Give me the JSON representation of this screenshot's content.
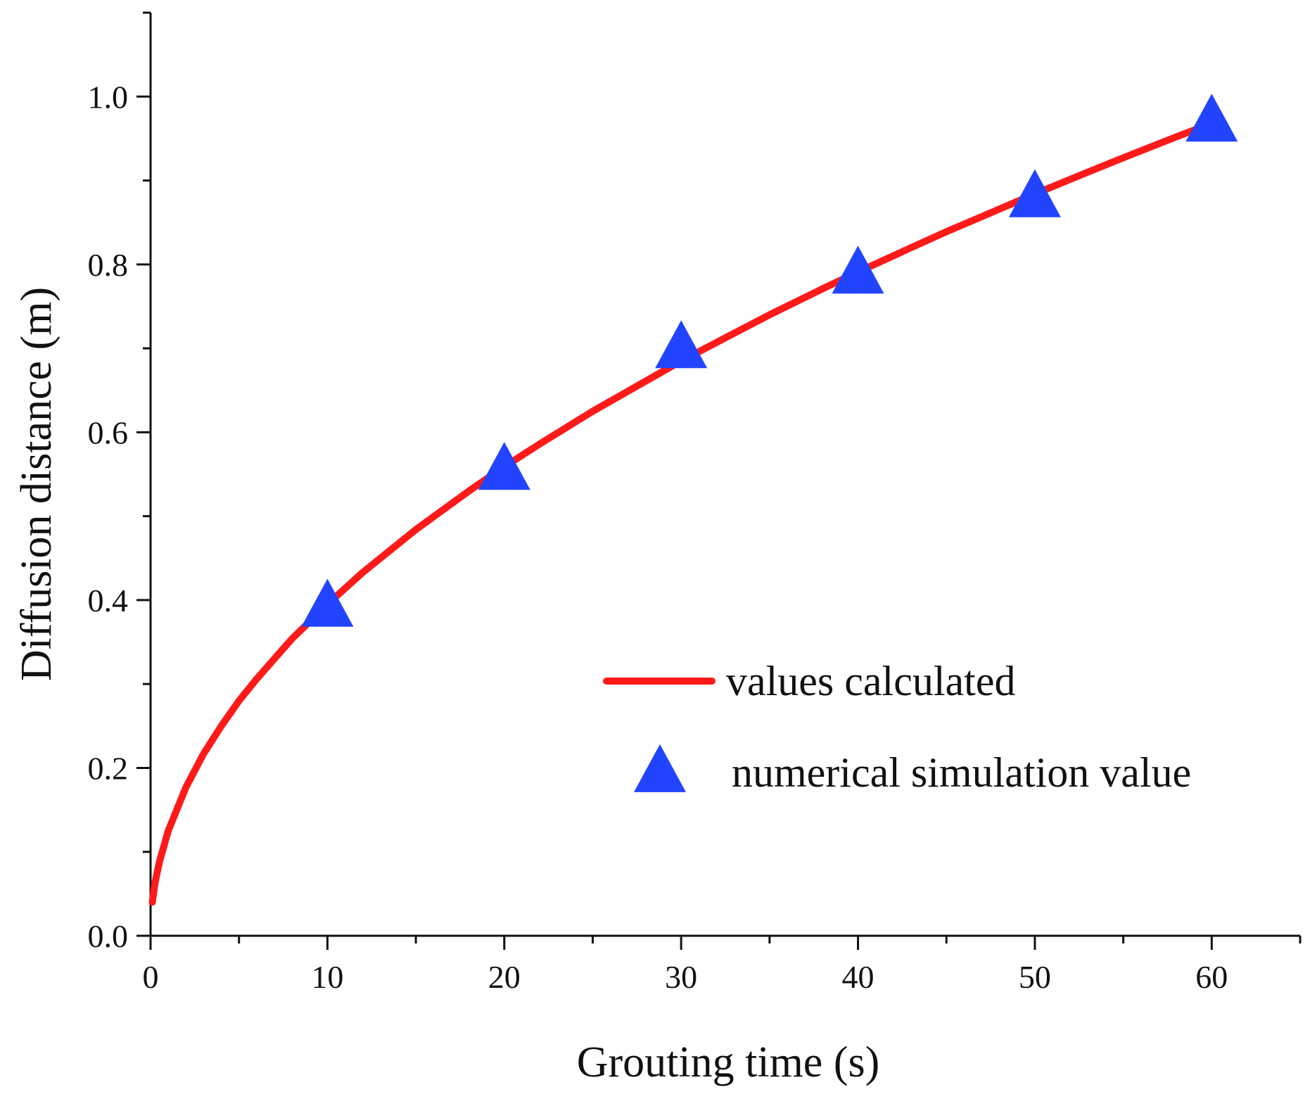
{
  "chart_data": {
    "type": "line",
    "title": "",
    "xlabel": "Grouting time (s)",
    "ylabel": "Diffusion distance (m)",
    "xlim": [
      0,
      65
    ],
    "ylim": [
      0,
      1.1
    ],
    "x_ticks": [
      0,
      10,
      20,
      30,
      40,
      50,
      60
    ],
    "x_tick_labels": [
      "0",
      "10",
      "20",
      "30",
      "40",
      "50",
      "60"
    ],
    "x_minor_ticks": [
      5,
      15,
      25,
      35,
      45,
      55,
      65
    ],
    "y_ticks": [
      0,
      0.2,
      0.4,
      0.6,
      0.8,
      1.0
    ],
    "y_tick_labels": [
      "0.0",
      "0.2",
      "0.4",
      "0.6",
      "0.8",
      "1.0"
    ],
    "y_minor_ticks": [
      0.1,
      0.3,
      0.5,
      0.7,
      0.9,
      1.1
    ],
    "grid": false,
    "legend_position": "center-right",
    "series": [
      {
        "name": "values calculated",
        "kind": "line",
        "color": "#ff1a1a",
        "formula": "y = 0.125 * x^0.5",
        "x": [
          0.1,
          0.25,
          0.5,
          1,
          2,
          3,
          4,
          5,
          6,
          8,
          10,
          12,
          15,
          18,
          20,
          22,
          25,
          28,
          30,
          33,
          35,
          38,
          40,
          43,
          45,
          48,
          50,
          53,
          55,
          58,
          60
        ],
        "y": [
          0.04,
          0.063,
          0.088,
          0.125,
          0.177,
          0.217,
          0.25,
          0.28,
          0.306,
          0.354,
          0.395,
          0.433,
          0.484,
          0.53,
          0.559,
          0.586,
          0.625,
          0.661,
          0.685,
          0.718,
          0.74,
          0.771,
          0.791,
          0.82,
          0.839,
          0.866,
          0.884,
          0.91,
          0.927,
          0.952,
          0.968
        ]
      },
      {
        "name": "numerical simulation value",
        "kind": "scatter",
        "marker": "triangle",
        "color": "#2244ff",
        "x": [
          10,
          20,
          30,
          40,
          50,
          60
        ],
        "y": [
          0.39,
          0.553,
          0.698,
          0.787,
          0.878,
          0.968
        ]
      }
    ]
  }
}
